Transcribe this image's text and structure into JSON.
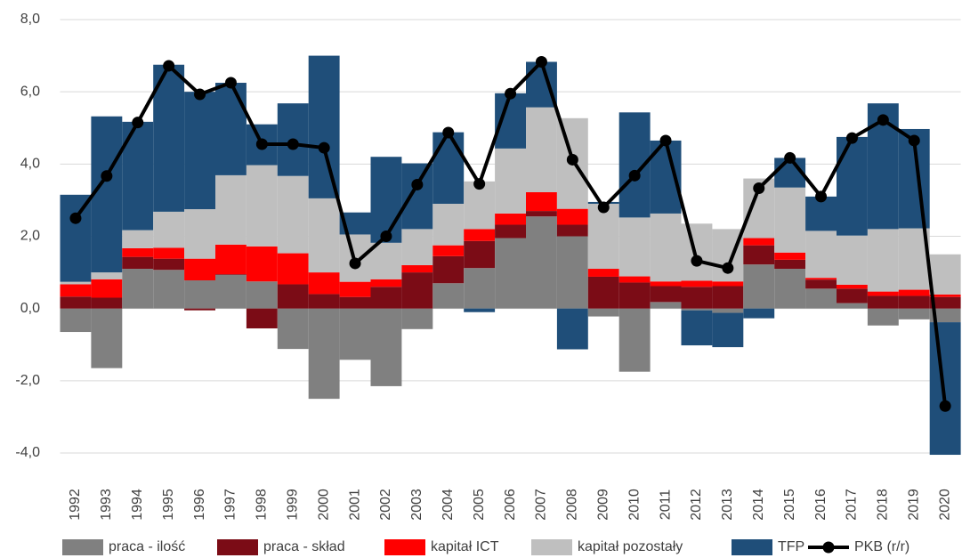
{
  "chart_data": {
    "type": "bar",
    "stacked": true,
    "grid": true,
    "legend": "bottom",
    "categories": [
      "1992",
      "1993",
      "1994",
      "1995",
      "1996",
      "1997",
      "1998",
      "1999",
      "2000",
      "2001",
      "2002",
      "2003",
      "2004",
      "2005",
      "2006",
      "2007",
      "2008",
      "2009",
      "2010",
      "2011",
      "2012",
      "2013",
      "2014",
      "2015",
      "2016",
      "2017",
      "2018",
      "2019",
      "2020"
    ],
    "ylim": [
      -4,
      8
    ],
    "yticks": [
      {
        "value": -4,
        "label": "-4,0"
      },
      {
        "value": -2,
        "label": "-2,0"
      },
      {
        "value": 0,
        "label": "0,0"
      },
      {
        "value": 2,
        "label": "2,0"
      },
      {
        "value": 4,
        "label": "4,0"
      },
      {
        "value": 6,
        "label": "6,0"
      },
      {
        "value": 8,
        "label": "8,0"
      }
    ],
    "series": [
      {
        "name": "praca - ilość",
        "color": "#808080",
        "values": [
          -0.65,
          -1.65,
          1.1,
          1.07,
          0.78,
          0.93,
          0.75,
          -1.12,
          -2.5,
          -1.42,
          -2.15,
          -0.57,
          0.7,
          1.12,
          1.95,
          2.55,
          2.0,
          -0.22,
          -1.75,
          0.18,
          -0.05,
          -0.12,
          1.22,
          1.1,
          0.55,
          0.15,
          -0.47,
          -0.3,
          -0.38
        ]
      },
      {
        "name": "praca - skład",
        "color": "#7b0c16",
        "values": [
          0.33,
          0.3,
          0.33,
          0.31,
          -0.05,
          0.02,
          -0.55,
          0.67,
          0.4,
          0.32,
          0.6,
          1.0,
          0.75,
          0.75,
          0.37,
          0.15,
          0.32,
          0.88,
          0.72,
          0.44,
          0.6,
          0.62,
          0.53,
          0.25,
          0.25,
          0.4,
          0.35,
          0.35,
          0.32
        ]
      },
      {
        "name": "kapitał ICT",
        "color": "#ff0000",
        "values": [
          0.34,
          0.51,
          0.24,
          0.3,
          0.6,
          0.82,
          0.97,
          0.86,
          0.6,
          0.42,
          0.21,
          0.2,
          0.3,
          0.33,
          0.31,
          0.52,
          0.44,
          0.22,
          0.17,
          0.13,
          0.17,
          0.13,
          0.2,
          0.2,
          0.05,
          0.11,
          0.12,
          0.17,
          0.07
        ]
      },
      {
        "name": "kapitał pozostały",
        "color": "#bfbfbf",
        "values": [
          0.07,
          0.19,
          0.5,
          1.0,
          1.37,
          1.92,
          2.25,
          2.14,
          2.05,
          1.31,
          1.01,
          1.0,
          1.15,
          1.32,
          1.8,
          2.35,
          2.51,
          1.8,
          1.63,
          1.88,
          1.58,
          1.45,
          1.65,
          1.8,
          1.3,
          1.36,
          1.73,
          1.7,
          1.11
        ]
      },
      {
        "name": "TFP",
        "color": "#1f4e79",
        "values": [
          2.41,
          4.32,
          3.0,
          4.07,
          3.25,
          2.56,
          1.13,
          2.01,
          3.95,
          0.61,
          2.38,
          1.82,
          1.98,
          -0.1,
          1.53,
          1.26,
          -1.13,
          0.05,
          2.91,
          2.02,
          -0.97,
          -0.95,
          -0.27,
          0.82,
          0.95,
          2.73,
          3.48,
          2.75,
          -3.67
        ]
      },
      {
        "name": "PKB (r/r)",
        "color": "#000000",
        "type": "line",
        "values": [
          2.5,
          3.67,
          5.15,
          6.72,
          5.93,
          6.25,
          4.55,
          4.55,
          4.45,
          1.25,
          2.0,
          3.43,
          4.87,
          3.45,
          5.95,
          6.83,
          4.12,
          2.8,
          3.68,
          4.65,
          1.32,
          1.12,
          3.33,
          4.17,
          3.1,
          4.72,
          5.22,
          4.65,
          -2.7
        ]
      }
    ]
  }
}
